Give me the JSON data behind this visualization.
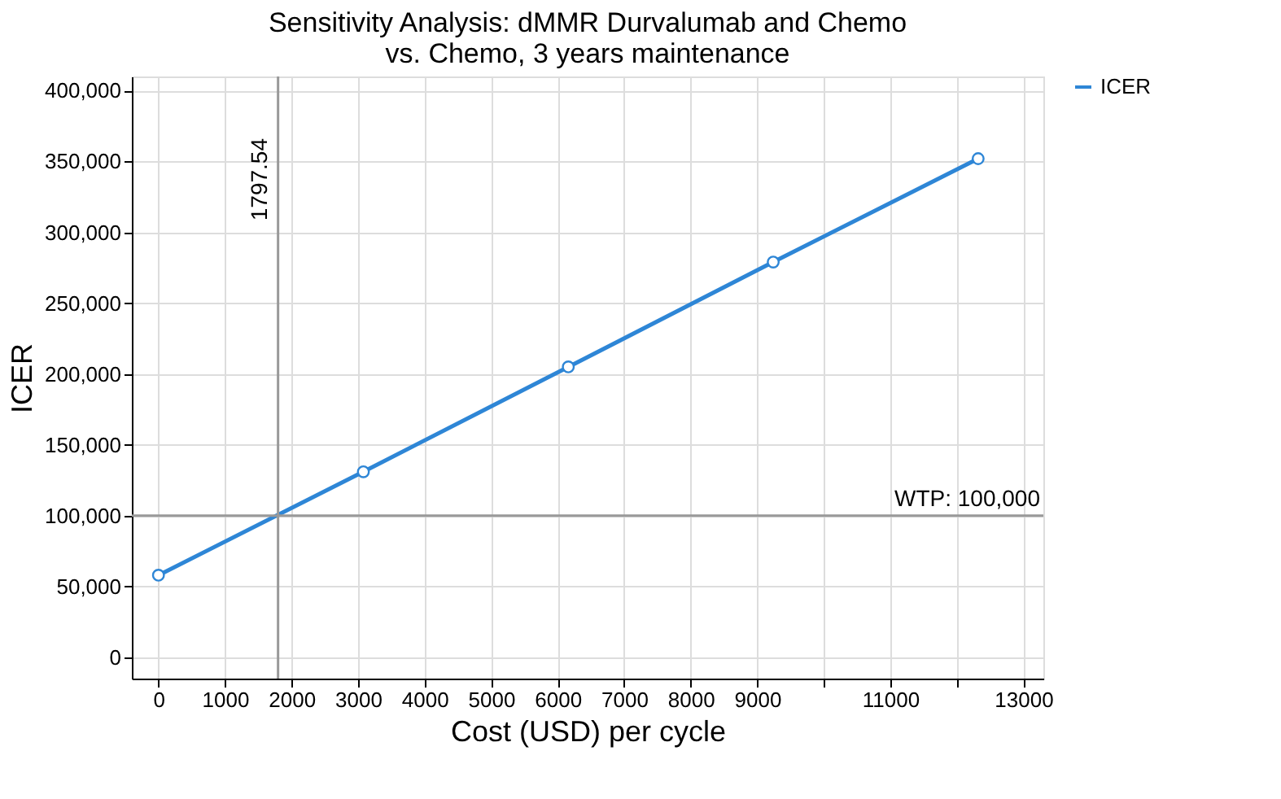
{
  "chart_data": {
    "type": "line",
    "title": "Sensitivity Analysis: dMMR Durvalumab and Chemo vs. Chemo, 3 years maintenance",
    "xlabel": "Cost (USD) per cycle",
    "ylabel": "ICER",
    "x": [
      0,
      3080,
      6160,
      9240,
      12320
    ],
    "series": [
      {
        "name": "ICER",
        "color": "#2e86d6",
        "values": [
          58000,
          131000,
          205000,
          279000,
          352000
        ]
      }
    ],
    "xlim": [
      -400,
      13300
    ],
    "ylim": [
      -15000,
      410000
    ],
    "xticks": [
      0,
      1000,
      2000,
      3000,
      4000,
      5000,
      6000,
      7000,
      8000,
      9000,
      {
        "value": 10000,
        "label": null
      },
      11000,
      {
        "value": 12000,
        "label": null
      },
      13000
    ],
    "yticks": [
      0,
      {
        "value": 50000,
        "label": "50,000"
      },
      {
        "value": 100000,
        "label": "100,000"
      },
      {
        "value": 150000,
        "label": "150,000"
      },
      {
        "value": 200000,
        "label": "200,000"
      },
      {
        "value": 250000,
        "label": "250,000"
      },
      {
        "value": 300000,
        "label": "300,000"
      },
      {
        "value": 350000,
        "label": "350,000"
      },
      {
        "value": 400000,
        "label": "400,000"
      }
    ],
    "ref_lines": [
      {
        "axis": "x",
        "value": 1797.54,
        "label": "1797.54",
        "color": "#999999"
      },
      {
        "axis": "y",
        "value": 100000,
        "label": "WTP: 100,000",
        "color": "#999999"
      }
    ],
    "grid": true,
    "legend": "top right",
    "marker": "circle",
    "line_style": "solid"
  }
}
